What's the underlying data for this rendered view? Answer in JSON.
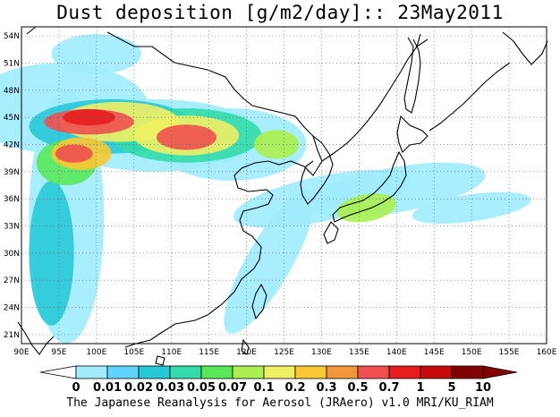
{
  "title": "Dust deposition [g/m2/day]:: 23May2011",
  "footer": "The Japanese Reanalysis for Aerosol (JRAero) v1.0 MRI/KU_RIAM",
  "map": {
    "lon_range": [
      90,
      160
    ],
    "lat_range": [
      20,
      55
    ],
    "lon_ticks": [
      "90E",
      "95E",
      "100E",
      "105E",
      "110E",
      "115E",
      "120E",
      "125E",
      "130E",
      "135E",
      "140E",
      "145E",
      "150E",
      "155E",
      "160E"
    ],
    "lat_ticks": [
      "54N",
      "51N",
      "48N",
      "45N",
      "42N",
      "39N",
      "36N",
      "33N",
      "30N",
      "27N",
      "24N",
      "21N"
    ],
    "gridlines": true
  },
  "colorbar": {
    "labels": [
      "0",
      "0.01",
      "0.02",
      "0.03",
      "0.05",
      "0.07",
      "0.1",
      "0.2",
      "0.3",
      "0.5",
      "0.7",
      "1",
      "5",
      "10"
    ],
    "colors": [
      "#ffffff",
      "#a0ecff",
      "#5fd4ff",
      "#28c8d8",
      "#33dcaa",
      "#58e85a",
      "#aaf050",
      "#f0f064",
      "#fac832",
      "#f0963c",
      "#f05050",
      "#e61e1e",
      "#c80a0a",
      "#820000"
    ]
  }
}
